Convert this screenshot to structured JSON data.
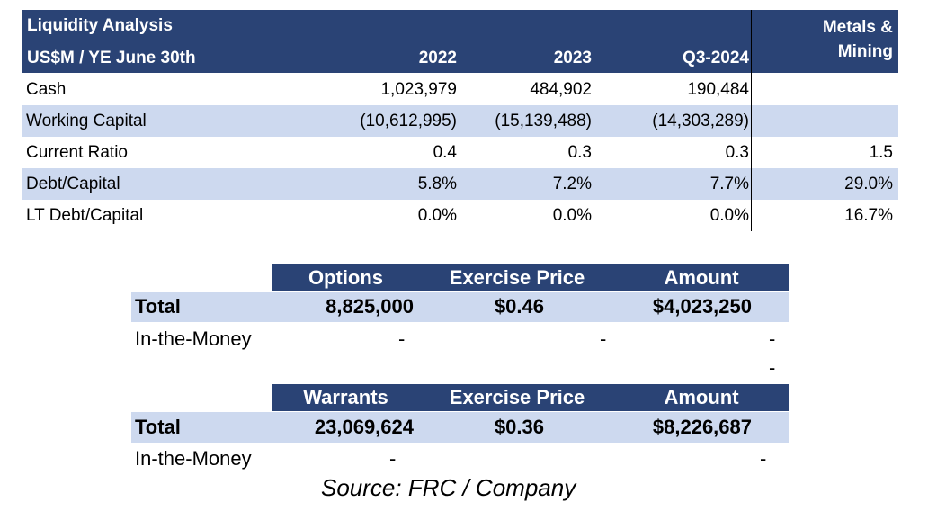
{
  "liquidity": {
    "title": "Liquidity Analysis",
    "subtitle": "US$M / YE June 30th",
    "col_2022": "2022",
    "col_2023": "2023",
    "col_q3": "Q3-2024",
    "col_peer_line1": "Metals &",
    "col_peer_line2": "Mining",
    "rows": [
      {
        "label": "Cash",
        "v2022": "1,023,979",
        "v2023": "484,902",
        "vq3": "190,484",
        "peer": ""
      },
      {
        "label": "Working Capital",
        "v2022": "(10,612,995)",
        "v2023": "(15,139,488)",
        "vq3": "(14,303,289)",
        "peer": ""
      },
      {
        "label": "Current Ratio",
        "v2022": "0.4",
        "v2023": "0.3",
        "vq3": "0.3",
        "peer": "1.5"
      },
      {
        "label": "Debt/Capital",
        "v2022": "5.8%",
        "v2023": "7.2%",
        "vq3": "7.7%",
        "peer": "29.0%"
      },
      {
        "label": "LT Debt/Capital",
        "v2022": "0.0%",
        "v2023": "0.0%",
        "vq3": "0.0%",
        "peer": "16.7%"
      }
    ]
  },
  "options": {
    "headers": [
      "Options",
      "Exercise Price",
      "Amount"
    ],
    "total_label": "Total",
    "total": [
      "8,825,000",
      "$0.46",
      "$4,023,250"
    ],
    "itm_label": "In-the-Money",
    "itm": [
      "-",
      "-",
      "-"
    ],
    "extra_dash": "-"
  },
  "warrants": {
    "headers": [
      "Warrants",
      "Exercise Price",
      "Amount"
    ],
    "total_label": "Total",
    "total": [
      "23,069,624",
      "$0.36",
      "$8,226,687"
    ],
    "itm_label": "In-the-Money",
    "itm": [
      "-",
      "-"
    ]
  },
  "source": "Source: FRC / Company"
}
